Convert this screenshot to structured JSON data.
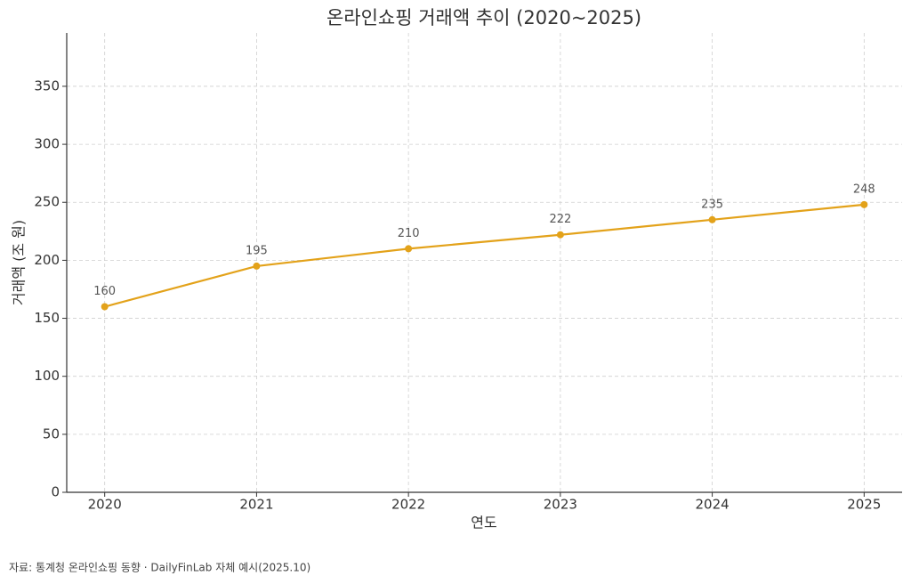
{
  "chart_data": {
    "type": "line",
    "title": "온라인쇼핑 거래액 추이 (2020~2025)",
    "x_label": "연도",
    "y_label": "거래액 (조 원)",
    "footnote": "자료: 통계청 온라인쇼핑 동향 · DailyFinLab 자체 예시(2025.10)",
    "x": [
      2020,
      2021,
      2022,
      2023,
      2024,
      2025
    ],
    "series": [
      {
        "name": "거래액",
        "color": "#e3a21a",
        "values": [
          160,
          195,
          210,
          222,
          235,
          248
        ]
      }
    ],
    "xlim": [
      2019.75,
      2025.25
    ],
    "xticks": [
      2020,
      2021,
      2022,
      2023,
      2024,
      2025
    ],
    "ylim": [
      0,
      396
    ],
    "yticks": [
      0,
      50,
      100,
      150,
      200,
      250,
      300,
      350
    ],
    "grid": true
  }
}
